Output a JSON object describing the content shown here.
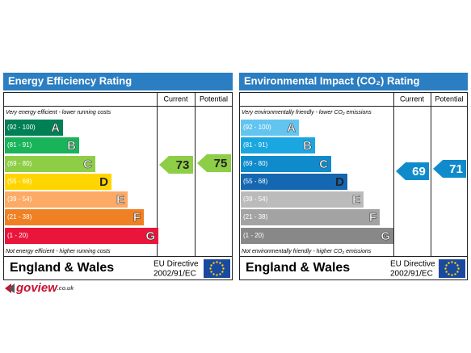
{
  "panels": [
    {
      "title": "Energy Efficiency Rating",
      "columns": [
        "Current",
        "Potential"
      ],
      "top_note": "Very energy efficient - lower running costs",
      "bands": [
        {
          "range": "(92 - 100)",
          "letter": "A"
        },
        {
          "range": "(81 - 91)",
          "letter": "B"
        },
        {
          "range": "(69 - 80)",
          "letter": "C"
        },
        {
          "range": "(55 - 68)",
          "letter": "D"
        },
        {
          "range": "(39 - 54)",
          "letter": "E"
        },
        {
          "range": "(21 - 38)",
          "letter": "F"
        },
        {
          "range": "(1 - 20)",
          "letter": "G"
        }
      ],
      "bottom_note": "Not energy efficient - higher running costs",
      "current": "73",
      "potential": "75",
      "region": "England & Wales",
      "directive": [
        "EU Directive",
        "2002/91/EC"
      ]
    },
    {
      "title": "Environmental Impact (CO₂) Rating",
      "columns": [
        "Current",
        "Potential"
      ],
      "top_note": "Very environmentally friendly - lower CO₂ emissions",
      "bands": [
        {
          "range": "(92 - 100)",
          "letter": "A"
        },
        {
          "range": "(81 - 91)",
          "letter": "B"
        },
        {
          "range": "(69 - 80)",
          "letter": "C"
        },
        {
          "range": "(55 - 68)",
          "letter": "D"
        },
        {
          "range": "(39 - 54)",
          "letter": "E"
        },
        {
          "range": "(21 - 38)",
          "letter": "F"
        },
        {
          "range": "(1 - 20)",
          "letter": "G"
        }
      ],
      "bottom_note": "Not environmentally friendly - higher CO₂ emissions",
      "current": "69",
      "potential": "71",
      "region": "England & Wales",
      "directive": [
        "EU Directive",
        "2002/91/EC"
      ]
    }
  ],
  "logo": {
    "name": "goview",
    "suffix": ".co.uk"
  }
}
